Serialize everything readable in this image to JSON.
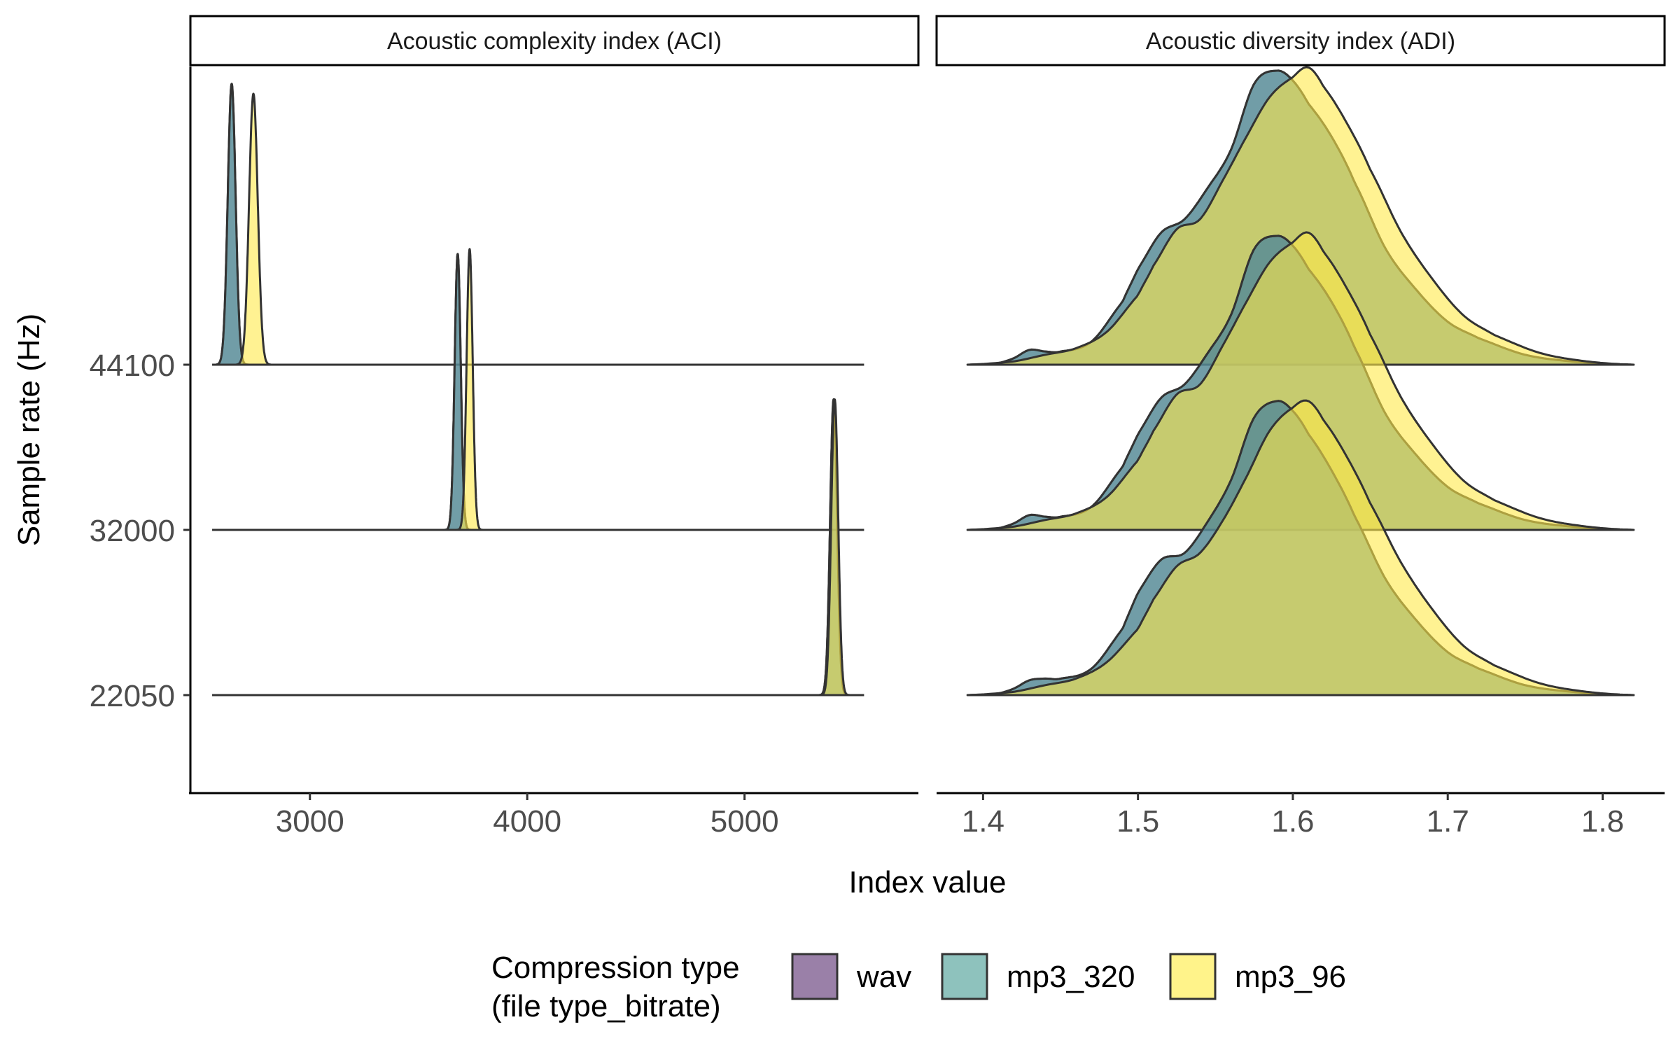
{
  "chart_data": {
    "type": "ridgeline-density",
    "ylabel": "Sample rate (Hz)",
    "xlabel": "Index value",
    "y_categories": [
      "44100",
      "32000",
      "22050"
    ],
    "colors": {
      "wav": "#6b4c8a",
      "mp3_320": "#4fa39b",
      "mp3_96": "#ffe94a",
      "outline": "#333333"
    },
    "legend": {
      "title_line1": "Compression type",
      "title_line2": "(file type_bitrate)",
      "position": "bottom",
      "entries": [
        {
          "key": "wav",
          "label": "wav",
          "color": "#9a80a8"
        },
        {
          "key": "mp3_320",
          "label": "mp3_320",
          "color": "#8ec2bd"
        },
        {
          "key": "mp3_96",
          "label": "mp3_96",
          "color": "#fff38a"
        }
      ]
    },
    "panels": [
      {
        "title": "Acoustic complexity index (ACI)",
        "xlim": [
          2450,
          5800
        ],
        "xticks": [
          3000,
          4000,
          5000
        ],
        "xtick_labels": [
          "3000",
          "4000",
          "5000"
        ],
        "line_range": [
          2550,
          5550
        ],
        "groups": [
          {
            "sample_rate": "44100",
            "series": [
              {
                "name": "wav",
                "shape": "normal",
                "mean": 2640,
                "sd": 18,
                "range": [
                  2570,
                  2720
                ],
                "height": 1.7
              },
              {
                "name": "mp3_320",
                "shape": "normal",
                "mean": 2640,
                "sd": 18,
                "range": [
                  2570,
                  2720
                ],
                "height": 1.7
              },
              {
                "name": "mp3_96",
                "shape": "normal",
                "mean": 2740,
                "sd": 20,
                "range": [
                  2660,
                  2820
                ],
                "height": 1.64
              }
            ]
          },
          {
            "sample_rate": "32000",
            "series": [
              {
                "name": "wav",
                "shape": "normal",
                "mean": 3680,
                "sd": 14,
                "range": [
                  3620,
                  3740
                ],
                "height": 1.67
              },
              {
                "name": "mp3_320",
                "shape": "normal",
                "mean": 3680,
                "sd": 14,
                "range": [
                  3620,
                  3740
                ],
                "height": 1.67
              },
              {
                "name": "mp3_96",
                "shape": "normal",
                "mean": 3735,
                "sd": 14,
                "range": [
                  3675,
                  3795
                ],
                "height": 1.7
              }
            ]
          },
          {
            "sample_rate": "22050",
            "series": [
              {
                "name": "wav",
                "shape": "normal",
                "mean": 5410,
                "sd": 16,
                "range": [
                  5345,
                  5520
                ],
                "height": 1.79
              },
              {
                "name": "mp3_320",
                "shape": "normal",
                "mean": 5410,
                "sd": 16,
                "range": [
                  5345,
                  5520
                ],
                "height": 1.79
              },
              {
                "name": "mp3_96",
                "shape": "normal",
                "mean": 5415,
                "sd": 16,
                "range": [
                  5350,
                  5525
                ],
                "height": 1.79
              }
            ]
          }
        ]
      },
      {
        "title": "Acoustic diversity index (ADI)",
        "xlim": [
          1.37,
          1.84
        ],
        "xticks": [
          1.4,
          1.5,
          1.6,
          1.7,
          1.8
        ],
        "xtick_labels": [
          "1.4",
          "1.5",
          "1.6",
          "1.7",
          "1.8"
        ],
        "line_range": [
          1.39,
          1.82
        ],
        "groups": [
          {
            "sample_rate": "44100",
            "series": [
              {
                "name": "wav",
                "shape": "profile",
                "x": [
                  1.39,
                  1.41,
                  1.42,
                  1.43,
                  1.44,
                  1.45,
                  1.47,
                  1.49,
                  1.5,
                  1.515,
                  1.53,
                  1.545,
                  1.56,
                  1.575,
                  1.59,
                  1.6,
                  1.61,
                  1.625,
                  1.64,
                  1.66,
                  1.68,
                  1.7,
                  1.72,
                  1.75,
                  1.78,
                  1.82
                ],
                "y": [
                  0,
                  0.01,
                  0.04,
                  0.09,
                  0.08,
                  0.08,
                  0.14,
                  0.38,
                  0.58,
                  0.8,
                  0.88,
                  1.07,
                  1.3,
                  1.7,
                  1.78,
                  1.72,
                  1.58,
                  1.38,
                  1.1,
                  0.7,
                  0.45,
                  0.26,
                  0.16,
                  0.06,
                  0.02,
                  0
                ]
              },
              {
                "name": "mp3_320",
                "shape": "profile",
                "x": [
                  1.39,
                  1.41,
                  1.42,
                  1.43,
                  1.44,
                  1.45,
                  1.47,
                  1.49,
                  1.5,
                  1.515,
                  1.53,
                  1.545,
                  1.56,
                  1.575,
                  1.59,
                  1.6,
                  1.61,
                  1.625,
                  1.64,
                  1.66,
                  1.68,
                  1.7,
                  1.72,
                  1.75,
                  1.78,
                  1.82
                ],
                "y": [
                  0,
                  0.01,
                  0.04,
                  0.09,
                  0.08,
                  0.08,
                  0.14,
                  0.38,
                  0.58,
                  0.8,
                  0.88,
                  1.07,
                  1.3,
                  1.7,
                  1.78,
                  1.72,
                  1.58,
                  1.38,
                  1.1,
                  0.7,
                  0.45,
                  0.26,
                  0.16,
                  0.06,
                  0.02,
                  0
                ]
              },
              {
                "name": "mp3_96",
                "shape": "profile",
                "x": [
                  1.39,
                  1.42,
                  1.44,
                  1.46,
                  1.48,
                  1.5,
                  1.51,
                  1.525,
                  1.54,
                  1.555,
                  1.57,
                  1.585,
                  1.6,
                  1.61,
                  1.62,
                  1.635,
                  1.65,
                  1.67,
                  1.69,
                  1.71,
                  1.73,
                  1.76,
                  1.79,
                  1.82
                ],
                "y": [
                  0,
                  0.02,
                  0.06,
                  0.1,
                  0.2,
                  0.42,
                  0.6,
                  0.82,
                  0.88,
                  1.12,
                  1.38,
                  1.62,
                  1.74,
                  1.8,
                  1.68,
                  1.46,
                  1.18,
                  0.8,
                  0.52,
                  0.3,
                  0.18,
                  0.07,
                  0.02,
                  0
                ]
              }
            ]
          },
          {
            "sample_rate": "32000",
            "series": [
              {
                "name": "wav",
                "shape": "profile",
                "x": [
                  1.39,
                  1.41,
                  1.42,
                  1.43,
                  1.44,
                  1.45,
                  1.47,
                  1.49,
                  1.5,
                  1.515,
                  1.53,
                  1.545,
                  1.56,
                  1.575,
                  1.59,
                  1.6,
                  1.61,
                  1.625,
                  1.64,
                  1.66,
                  1.68,
                  1.7,
                  1.72,
                  1.75,
                  1.78,
                  1.82
                ],
                "y": [
                  0,
                  0.01,
                  0.04,
                  0.09,
                  0.08,
                  0.08,
                  0.14,
                  0.38,
                  0.58,
                  0.8,
                  0.88,
                  1.07,
                  1.3,
                  1.7,
                  1.78,
                  1.72,
                  1.58,
                  1.38,
                  1.1,
                  0.7,
                  0.45,
                  0.26,
                  0.16,
                  0.06,
                  0.02,
                  0
                ]
              },
              {
                "name": "mp3_320",
                "shape": "profile",
                "x": [
                  1.39,
                  1.41,
                  1.42,
                  1.43,
                  1.44,
                  1.45,
                  1.47,
                  1.49,
                  1.5,
                  1.515,
                  1.53,
                  1.545,
                  1.56,
                  1.575,
                  1.59,
                  1.6,
                  1.61,
                  1.625,
                  1.64,
                  1.66,
                  1.68,
                  1.7,
                  1.72,
                  1.75,
                  1.78,
                  1.82
                ],
                "y": [
                  0,
                  0.01,
                  0.04,
                  0.09,
                  0.08,
                  0.08,
                  0.14,
                  0.38,
                  0.58,
                  0.8,
                  0.88,
                  1.07,
                  1.3,
                  1.7,
                  1.78,
                  1.72,
                  1.58,
                  1.38,
                  1.1,
                  0.7,
                  0.45,
                  0.26,
                  0.16,
                  0.06,
                  0.02,
                  0
                ]
              },
              {
                "name": "mp3_96",
                "shape": "profile",
                "x": [
                  1.39,
                  1.42,
                  1.44,
                  1.46,
                  1.48,
                  1.5,
                  1.51,
                  1.525,
                  1.54,
                  1.555,
                  1.57,
                  1.585,
                  1.6,
                  1.61,
                  1.62,
                  1.635,
                  1.65,
                  1.67,
                  1.69,
                  1.71,
                  1.73,
                  1.76,
                  1.79,
                  1.82
                ],
                "y": [
                  0,
                  0.02,
                  0.06,
                  0.1,
                  0.2,
                  0.42,
                  0.6,
                  0.82,
                  0.88,
                  1.12,
                  1.38,
                  1.62,
                  1.74,
                  1.8,
                  1.68,
                  1.46,
                  1.18,
                  0.8,
                  0.52,
                  0.3,
                  0.18,
                  0.07,
                  0.02,
                  0
                ]
              }
            ]
          },
          {
            "sample_rate": "22050",
            "series": [
              {
                "name": "wav",
                "shape": "profile",
                "x": [
                  1.39,
                  1.41,
                  1.42,
                  1.43,
                  1.44,
                  1.45,
                  1.47,
                  1.49,
                  1.5,
                  1.515,
                  1.53,
                  1.545,
                  1.56,
                  1.575,
                  1.59,
                  1.6,
                  1.61,
                  1.625,
                  1.64,
                  1.66,
                  1.68,
                  1.7,
                  1.72,
                  1.75,
                  1.78,
                  1.82
                ],
                "y": [
                  0,
                  0.01,
                  0.04,
                  0.09,
                  0.1,
                  0.1,
                  0.16,
                  0.4,
                  0.62,
                  0.82,
                  0.86,
                  1.05,
                  1.3,
                  1.68,
                  1.78,
                  1.72,
                  1.58,
                  1.36,
                  1.08,
                  0.7,
                  0.45,
                  0.26,
                  0.16,
                  0.06,
                  0.02,
                  0
                ]
              },
              {
                "name": "mp3_320",
                "shape": "profile",
                "x": [
                  1.39,
                  1.41,
                  1.42,
                  1.43,
                  1.44,
                  1.45,
                  1.47,
                  1.49,
                  1.5,
                  1.515,
                  1.53,
                  1.545,
                  1.56,
                  1.575,
                  1.59,
                  1.6,
                  1.61,
                  1.625,
                  1.64,
                  1.66,
                  1.68,
                  1.7,
                  1.72,
                  1.75,
                  1.78,
                  1.82
                ],
                "y": [
                  0,
                  0.01,
                  0.04,
                  0.09,
                  0.1,
                  0.1,
                  0.16,
                  0.4,
                  0.62,
                  0.82,
                  0.86,
                  1.05,
                  1.3,
                  1.68,
                  1.78,
                  1.72,
                  1.58,
                  1.36,
                  1.08,
                  0.7,
                  0.45,
                  0.26,
                  0.16,
                  0.06,
                  0.02,
                  0
                ]
              },
              {
                "name": "mp3_96",
                "shape": "profile",
                "x": [
                  1.39,
                  1.42,
                  1.44,
                  1.46,
                  1.48,
                  1.5,
                  1.51,
                  1.525,
                  1.54,
                  1.555,
                  1.57,
                  1.585,
                  1.6,
                  1.61,
                  1.62,
                  1.635,
                  1.65,
                  1.67,
                  1.69,
                  1.71,
                  1.73,
                  1.76,
                  1.79,
                  1.82
                ],
                "y": [
                  0,
                  0.02,
                  0.06,
                  0.1,
                  0.2,
                  0.4,
                  0.58,
                  0.78,
                  0.86,
                  1.06,
                  1.32,
                  1.6,
                  1.74,
                  1.78,
                  1.66,
                  1.44,
                  1.16,
                  0.8,
                  0.52,
                  0.3,
                  0.18,
                  0.07,
                  0.02,
                  0
                ]
              }
            ]
          }
        ]
      }
    ]
  }
}
